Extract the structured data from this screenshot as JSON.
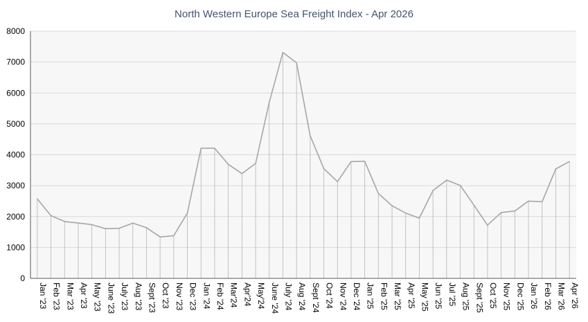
{
  "chart_data": {
    "type": "line",
    "title": "North Western Europe Sea Freight Index - Apr 2026",
    "xlabel": "",
    "ylabel": "",
    "ylim": [
      0,
      8000
    ],
    "yticks": [
      0,
      1000,
      2000,
      3000,
      4000,
      5000,
      6000,
      7000,
      8000
    ],
    "grid": true,
    "drop_lines": true,
    "colors": {
      "line": "#a6a6a6",
      "grid": "#d9d9d9",
      "plot_bg": "#f7f7f7",
      "title": "#44546a"
    },
    "categories": [
      "Jan '23",
      "Feb '23",
      "Mar '23",
      "Apr '23",
      "May '23",
      "June '23",
      "July '23",
      "Aug '23",
      "Sept '23",
      "Oct '23",
      "Nov '23",
      "Dec '23",
      "Jan '24",
      "Feb '24",
      "Mar'24",
      "Apr'24",
      "May'24",
      "June '24",
      "July '24",
      "Aug '24",
      "Sept '24",
      "Oct '24",
      "Nov '24",
      "Dec '24",
      "Jan '25",
      "Feb '25",
      "Mar '25",
      "Apr '25",
      "May '25",
      "Jun '25",
      "Jul '25",
      "Aug '25",
      "Sept '25",
      "Oct '25",
      "Nov '25",
      "Dec '25",
      "Jan '26",
      "Feb '26",
      "Mar '26",
      "Apr '26"
    ],
    "values": [
      2570,
      2030,
      1840,
      1790,
      1740,
      1610,
      1620,
      1790,
      1640,
      1340,
      1380,
      2110,
      4210,
      4210,
      3690,
      3390,
      3720,
      5700,
      7310,
      6980,
      4620,
      3550,
      3130,
      3780,
      3790,
      2750,
      2350,
      2110,
      1950,
      2840,
      3180,
      3010,
      2370,
      1720,
      2130,
      2180,
      2500,
      2480,
      3540,
      3780
    ]
  }
}
